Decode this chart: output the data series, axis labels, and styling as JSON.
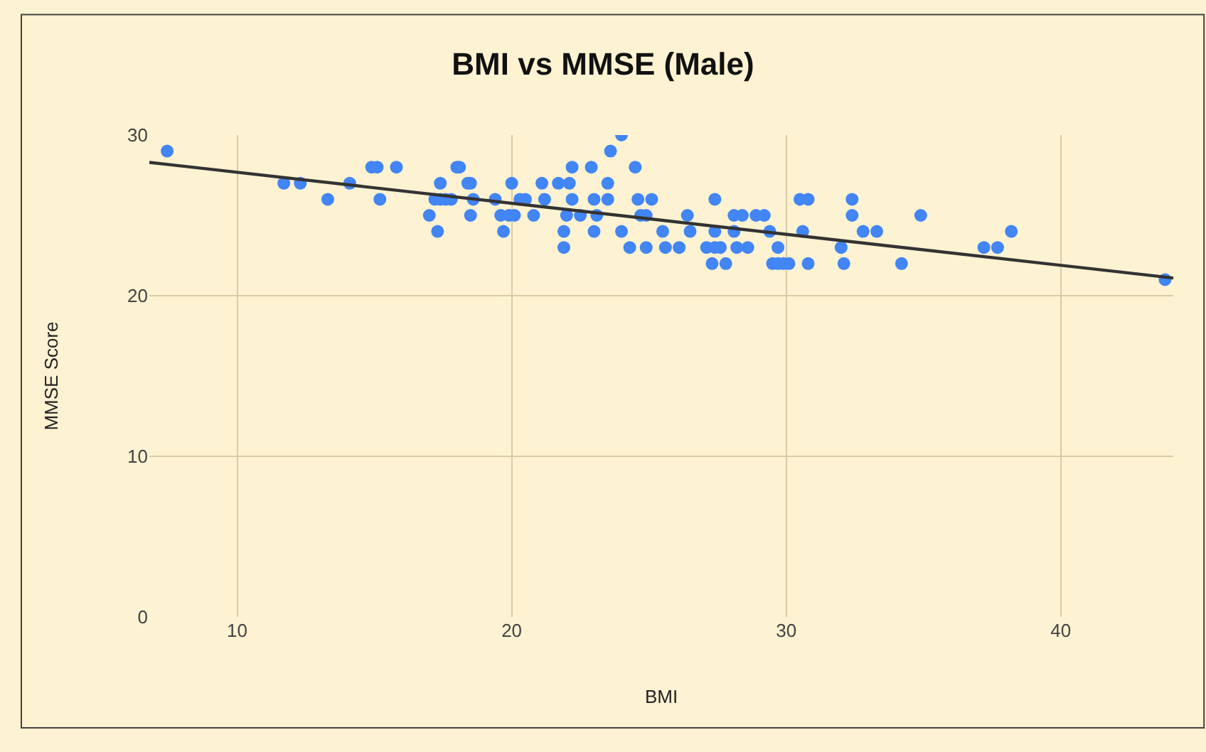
{
  "chart_data": {
    "type": "scatter",
    "title": "BMI vs MMSE (Male)",
    "xlabel": "BMI",
    "ylabel": "MMSE Score",
    "xlim": [
      6.8,
      44.1
    ],
    "ylim": [
      0,
      30
    ],
    "xticks": [
      10,
      20,
      30,
      40
    ],
    "yticks": [
      0,
      10,
      20,
      30
    ],
    "grid": true,
    "series": [
      {
        "color": "#4285f4",
        "marker": "circle",
        "x": [
          7.45,
          11.7,
          12.3,
          13.3,
          14.1,
          14.9,
          15.1,
          15.2,
          15.8,
          17.0,
          17.3,
          17.4,
          17.2,
          17.4,
          17.6,
          17.8,
          18.0,
          18.1,
          18.4,
          18.5,
          18.6,
          18.5,
          19.4,
          19.6,
          19.7,
          19.9,
          20.0,
          20.1,
          20.3,
          20.5,
          20.8,
          21.1,
          21.2,
          21.7,
          21.9,
          21.9,
          22.1,
          22.0,
          22.2,
          22.2,
          22.5,
          22.9,
          23.0,
          23.0,
          23.1,
          23.5,
          23.5,
          23.6,
          24.0,
          24.0,
          24.3,
          24.5,
          24.6,
          24.7,
          24.9,
          24.9,
          25.1,
          25.5,
          25.6,
          26.1,
          26.4,
          26.5,
          27.1,
          27.3,
          27.4,
          27.4,
          27.4,
          27.6,
          27.8,
          28.1,
          28.1,
          28.2,
          28.4,
          28.6,
          28.9,
          29.2,
          29.4,
          29.7,
          29.5,
          29.7,
          29.9,
          30.1,
          30.5,
          30.8,
          30.6,
          30.8,
          32.0,
          32.1,
          32.4,
          32.4,
          32.8,
          33.3,
          34.2,
          34.9,
          37.2,
          37.7,
          38.2,
          43.8
        ],
        "values": [
          29,
          27,
          27,
          26,
          27,
          28,
          28,
          26,
          28,
          25,
          24,
          27,
          26,
          26,
          26,
          26,
          28,
          28,
          27,
          27,
          26,
          25,
          26,
          25,
          24,
          25,
          27,
          25,
          26,
          26,
          25,
          27,
          26,
          27,
          24,
          23,
          27,
          25,
          28,
          26,
          25,
          28,
          24,
          26,
          25,
          27,
          26,
          29,
          30,
          24,
          23,
          28,
          26,
          25,
          25,
          23,
          26,
          24,
          23,
          23,
          25,
          24,
          23,
          22,
          26,
          24,
          23,
          23,
          22,
          25,
          24,
          23,
          25,
          23,
          25,
          25,
          24,
          23,
          22,
          22,
          22,
          22,
          26,
          26,
          24,
          22,
          23,
          22,
          26,
          25,
          24,
          24,
          22,
          25,
          23,
          23,
          24,
          21
        ]
      },
      {
        "type": "line",
        "color": "#333333",
        "line_style": "solid",
        "marker": "none",
        "x": [
          6.8,
          44.1
        ],
        "values": [
          28.3,
          21.1
        ]
      }
    ]
  }
}
